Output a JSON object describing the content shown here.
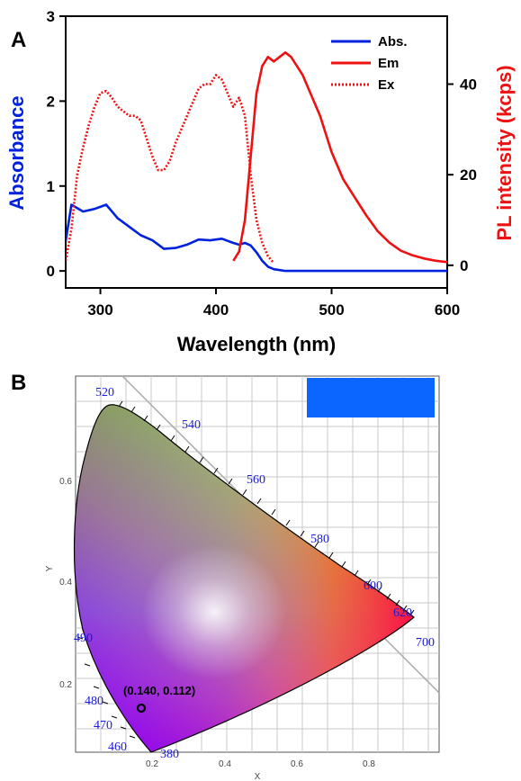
{
  "panel_a_label": "A",
  "panel_b_label": "B",
  "chart_data": [
    {
      "type": "line",
      "panel": "A",
      "xlabel": "Wavelength (nm)",
      "ylabel_left": "Absorbance",
      "ylabel_right": "PL intensity (kcps)",
      "xlim": [
        270,
        600
      ],
      "ylim_left": [
        -0.2,
        3
      ],
      "ylim_right": [
        -5,
        55
      ],
      "x_ticks": [
        300,
        400,
        500,
        600
      ],
      "y_left_ticks": [
        0,
        1,
        2,
        3
      ],
      "y_right_ticks": [
        0,
        20,
        40
      ],
      "legend_position": "top-right",
      "colors": {
        "abs": "#0022dd",
        "em": "#ee1111",
        "ex": "#ee1111"
      },
      "series": [
        {
          "name": "Abs.",
          "axis": "left",
          "style": "solid",
          "x": [
            270,
            275,
            285,
            295,
            305,
            315,
            325,
            335,
            345,
            355,
            365,
            375,
            385,
            395,
            405,
            415,
            420,
            425,
            430,
            435,
            440,
            445,
            450,
            460,
            480,
            500,
            550,
            600
          ],
          "y": [
            0.35,
            0.78,
            0.7,
            0.73,
            0.78,
            0.62,
            0.52,
            0.42,
            0.36,
            0.26,
            0.27,
            0.31,
            0.37,
            0.36,
            0.38,
            0.33,
            0.31,
            0.33,
            0.3,
            0.22,
            0.12,
            0.05,
            0.02,
            0.0,
            0.0,
            0.0,
            0.0,
            0.0
          ]
        },
        {
          "name": "Em",
          "axis": "right",
          "style": "solid",
          "x": [
            415,
            420,
            425,
            430,
            435,
            440,
            445,
            450,
            455,
            460,
            465,
            470,
            475,
            480,
            490,
            500,
            510,
            520,
            530,
            540,
            550,
            560,
            570,
            580,
            590,
            600
          ],
          "y": [
            1,
            3,
            10,
            24,
            38,
            44,
            46,
            45,
            46,
            47,
            46,
            44,
            42,
            39,
            33,
            25,
            19,
            15,
            11,
            7.5,
            5,
            3.2,
            2.2,
            1.5,
            1.0,
            0.7
          ]
        },
        {
          "name": "Ex",
          "axis": "right",
          "style": "dotted",
          "x": [
            270,
            275,
            280,
            285,
            290,
            295,
            300,
            305,
            310,
            315,
            320,
            325,
            330,
            335,
            340,
            345,
            350,
            355,
            360,
            365,
            370,
            375,
            380,
            385,
            390,
            395,
            400,
            405,
            410,
            415,
            420,
            425,
            430,
            435,
            440,
            445,
            450
          ],
          "y": [
            1,
            8,
            20,
            26,
            31,
            35,
            38,
            38.5,
            37,
            35,
            34,
            33,
            33,
            32,
            28,
            24,
            21,
            21,
            23,
            27,
            30,
            33,
            36,
            39,
            40,
            40,
            42,
            41,
            38,
            35,
            37,
            33,
            20,
            10,
            5,
            2,
            0.5
          ]
        }
      ]
    },
    {
      "type": "scatter",
      "panel": "B",
      "xlabel": "X",
      "ylabel": "Y",
      "xlim": [
        0.15,
        0.95
      ],
      "ylim": [
        0.05,
        0.75
      ],
      "x_ticks": [
        "0.2",
        "0.4",
        "0.6",
        "0.8"
      ],
      "y_ticks": [
        "0.2",
        "0.4",
        "0.6"
      ],
      "point": {
        "x": 0.14,
        "y": 0.112,
        "label": "(0.140, 0.112)"
      },
      "swatch_color": "#0a66ff",
      "wavelength_labels": [
        "520",
        "540",
        "560",
        "580",
        "600",
        "620",
        "700",
        "490",
        "480",
        "470",
        "460",
        "380"
      ]
    }
  ]
}
